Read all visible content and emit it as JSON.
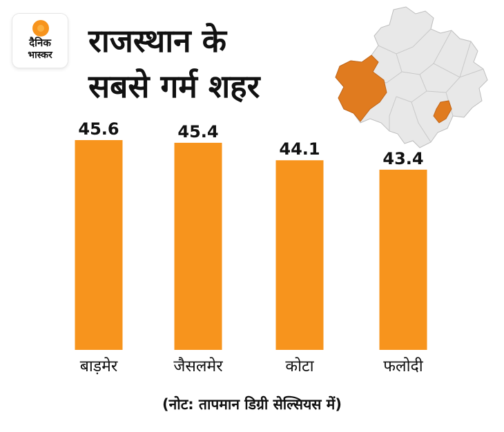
{
  "brand": {
    "line1": "दैनिक",
    "line2": "भास्कर",
    "sun_color": "#f7941d"
  },
  "title": {
    "line1": "राजस्थान के",
    "line2": "सबसे गर्म शहर"
  },
  "note": "(नोट: तापमान डिग्री सेल्सियस में)",
  "colors": {
    "bar": "#f7941d",
    "map_fill": "#e8e8e8",
    "map_highlight": "#e07b1f",
    "text": "#111111"
  },
  "chart_data": {
    "type": "bar",
    "title": "राजस्थान के सबसे गर्म शहर",
    "categories": [
      "बाड़मेर",
      "जैसलमेर",
      "कोटा",
      "फलोदी"
    ],
    "values": [
      45.6,
      45.4,
      44.1,
      43.4
    ],
    "data_labels": [
      "45.6",
      "45.4",
      "44.1",
      "43.4"
    ],
    "xlabel": "",
    "ylabel": "",
    "ylim": [
      30.0,
      46.5
    ],
    "grid": false,
    "legend": "none"
  }
}
